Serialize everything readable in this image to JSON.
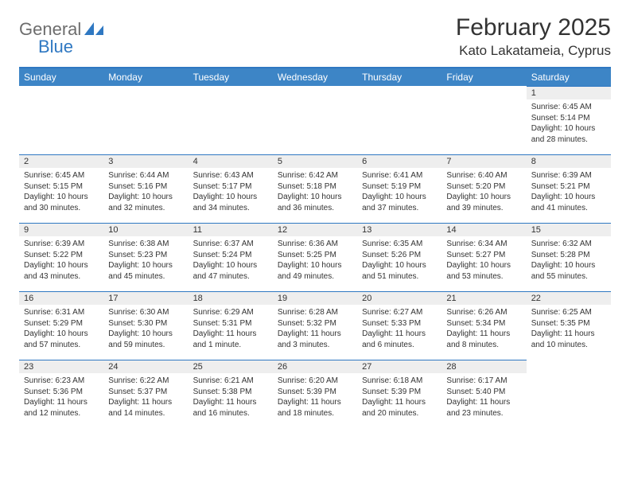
{
  "brand": {
    "part1": "General",
    "part2": "Blue"
  },
  "title": "February 2025",
  "location": "Kato Lakatameia, Cyprus",
  "colors": {
    "header_bg": "#3d85c6",
    "rule": "#2f78c2",
    "daynum_bg": "#eeeeee",
    "text": "#333333",
    "brand_gray": "#6d6d6d",
    "brand_blue": "#2f78c2"
  },
  "weekdays": [
    "Sunday",
    "Monday",
    "Tuesday",
    "Wednesday",
    "Thursday",
    "Friday",
    "Saturday"
  ],
  "weeks": [
    [
      {
        "n": "",
        "sunrise": "",
        "sunset": "",
        "daylight": ""
      },
      {
        "n": "",
        "sunrise": "",
        "sunset": "",
        "daylight": ""
      },
      {
        "n": "",
        "sunrise": "",
        "sunset": "",
        "daylight": ""
      },
      {
        "n": "",
        "sunrise": "",
        "sunset": "",
        "daylight": ""
      },
      {
        "n": "",
        "sunrise": "",
        "sunset": "",
        "daylight": ""
      },
      {
        "n": "",
        "sunrise": "",
        "sunset": "",
        "daylight": ""
      },
      {
        "n": "1",
        "sunrise": "6:45 AM",
        "sunset": "5:14 PM",
        "daylight": "10 hours and 28 minutes."
      }
    ],
    [
      {
        "n": "2",
        "sunrise": "6:45 AM",
        "sunset": "5:15 PM",
        "daylight": "10 hours and 30 minutes."
      },
      {
        "n": "3",
        "sunrise": "6:44 AM",
        "sunset": "5:16 PM",
        "daylight": "10 hours and 32 minutes."
      },
      {
        "n": "4",
        "sunrise": "6:43 AM",
        "sunset": "5:17 PM",
        "daylight": "10 hours and 34 minutes."
      },
      {
        "n": "5",
        "sunrise": "6:42 AM",
        "sunset": "5:18 PM",
        "daylight": "10 hours and 36 minutes."
      },
      {
        "n": "6",
        "sunrise": "6:41 AM",
        "sunset": "5:19 PM",
        "daylight": "10 hours and 37 minutes."
      },
      {
        "n": "7",
        "sunrise": "6:40 AM",
        "sunset": "5:20 PM",
        "daylight": "10 hours and 39 minutes."
      },
      {
        "n": "8",
        "sunrise": "6:39 AM",
        "sunset": "5:21 PM",
        "daylight": "10 hours and 41 minutes."
      }
    ],
    [
      {
        "n": "9",
        "sunrise": "6:39 AM",
        "sunset": "5:22 PM",
        "daylight": "10 hours and 43 minutes."
      },
      {
        "n": "10",
        "sunrise": "6:38 AM",
        "sunset": "5:23 PM",
        "daylight": "10 hours and 45 minutes."
      },
      {
        "n": "11",
        "sunrise": "6:37 AM",
        "sunset": "5:24 PM",
        "daylight": "10 hours and 47 minutes."
      },
      {
        "n": "12",
        "sunrise": "6:36 AM",
        "sunset": "5:25 PM",
        "daylight": "10 hours and 49 minutes."
      },
      {
        "n": "13",
        "sunrise": "6:35 AM",
        "sunset": "5:26 PM",
        "daylight": "10 hours and 51 minutes."
      },
      {
        "n": "14",
        "sunrise": "6:34 AM",
        "sunset": "5:27 PM",
        "daylight": "10 hours and 53 minutes."
      },
      {
        "n": "15",
        "sunrise": "6:32 AM",
        "sunset": "5:28 PM",
        "daylight": "10 hours and 55 minutes."
      }
    ],
    [
      {
        "n": "16",
        "sunrise": "6:31 AM",
        "sunset": "5:29 PM",
        "daylight": "10 hours and 57 minutes."
      },
      {
        "n": "17",
        "sunrise": "6:30 AM",
        "sunset": "5:30 PM",
        "daylight": "10 hours and 59 minutes."
      },
      {
        "n": "18",
        "sunrise": "6:29 AM",
        "sunset": "5:31 PM",
        "daylight": "11 hours and 1 minute."
      },
      {
        "n": "19",
        "sunrise": "6:28 AM",
        "sunset": "5:32 PM",
        "daylight": "11 hours and 3 minutes."
      },
      {
        "n": "20",
        "sunrise": "6:27 AM",
        "sunset": "5:33 PM",
        "daylight": "11 hours and 6 minutes."
      },
      {
        "n": "21",
        "sunrise": "6:26 AM",
        "sunset": "5:34 PM",
        "daylight": "11 hours and 8 minutes."
      },
      {
        "n": "22",
        "sunrise": "6:25 AM",
        "sunset": "5:35 PM",
        "daylight": "11 hours and 10 minutes."
      }
    ],
    [
      {
        "n": "23",
        "sunrise": "6:23 AM",
        "sunset": "5:36 PM",
        "daylight": "11 hours and 12 minutes."
      },
      {
        "n": "24",
        "sunrise": "6:22 AM",
        "sunset": "5:37 PM",
        "daylight": "11 hours and 14 minutes."
      },
      {
        "n": "25",
        "sunrise": "6:21 AM",
        "sunset": "5:38 PM",
        "daylight": "11 hours and 16 minutes."
      },
      {
        "n": "26",
        "sunrise": "6:20 AM",
        "sunset": "5:39 PM",
        "daylight": "11 hours and 18 minutes."
      },
      {
        "n": "27",
        "sunrise": "6:18 AM",
        "sunset": "5:39 PM",
        "daylight": "11 hours and 20 minutes."
      },
      {
        "n": "28",
        "sunrise": "6:17 AM",
        "sunset": "5:40 PM",
        "daylight": "11 hours and 23 minutes."
      },
      {
        "n": "",
        "sunrise": "",
        "sunset": "",
        "daylight": ""
      }
    ]
  ],
  "labels": {
    "sunrise": "Sunrise:",
    "sunset": "Sunset:",
    "daylight": "Daylight:"
  }
}
